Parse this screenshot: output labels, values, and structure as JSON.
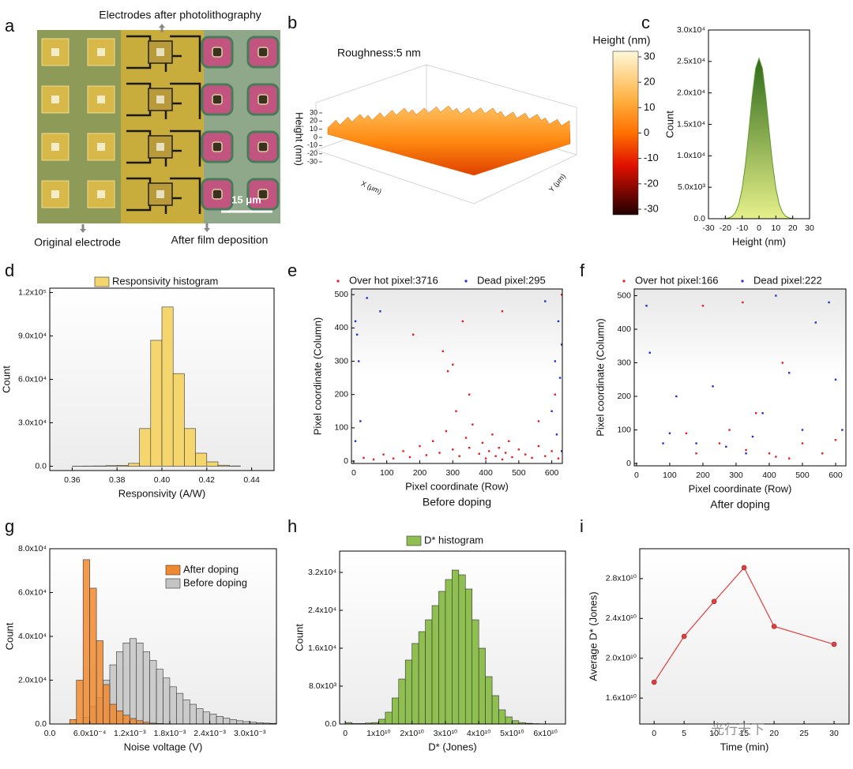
{
  "watermark": "光行天下",
  "chart_data": [
    {
      "panel": "a",
      "type": "image",
      "annotations": [
        "Electrodes after photolithography",
        "Original electrode",
        "After film deposition"
      ],
      "scale_bar": "15 μm"
    },
    {
      "panel": "b",
      "type": "surface",
      "title": "Roughness:5 nm",
      "zlabel": "Height (nm)",
      "xlabel": "X (μm)",
      "ylabel": "Y (μm)",
      "zlim": [
        -30,
        30
      ],
      "zticks": [
        30,
        20,
        10,
        0,
        -10,
        -20,
        -30
      ],
      "colorbar_label": "Height (nm)",
      "colorbar_lim": [
        -30,
        30
      ],
      "colorbar_ticks": [
        30,
        20,
        10,
        0,
        -10,
        -20,
        -30
      ]
    },
    {
      "panel": "c",
      "type": "area",
      "xlabel": "Height (nm)",
      "ylabel": "Count",
      "color": "#5e9a2e",
      "x": [
        -20,
        -18,
        -16,
        -14,
        -12,
        -10,
        -8,
        -6,
        -4,
        -2,
        0,
        2,
        4,
        6,
        8,
        10,
        12,
        14,
        16,
        18,
        20
      ],
      "values": [
        33,
        115,
        360,
        970,
        2300,
        4800,
        8800,
        14000,
        19500,
        23900,
        25500,
        23900,
        19500,
        14000,
        8800,
        4800,
        2300,
        970,
        360,
        115,
        33
      ],
      "xlim": [
        -30,
        30
      ],
      "xticks": [
        -30,
        -20,
        -10,
        0,
        10,
        20,
        30
      ],
      "ylim": [
        0,
        30000
      ],
      "yticks": [
        {
          "value": 0,
          "label": "0.0"
        },
        {
          "value": 5000,
          "label": "5.0x10³"
        },
        {
          "value": 10000,
          "label": "1.0x10⁴"
        },
        {
          "value": 15000,
          "label": "1.5x10⁴"
        },
        {
          "value": 20000,
          "label": "2.0x10⁴"
        },
        {
          "value": 25000,
          "label": "2.5x10⁴"
        },
        {
          "value": 30000,
          "label": "3.0x10⁴"
        }
      ]
    },
    {
      "panel": "d",
      "type": "histogram",
      "xlabel": "Responsivity (A/W)",
      "ylabel": "Count",
      "bins": [
        0.36,
        0.365,
        0.37,
        0.375,
        0.38,
        0.385,
        0.39,
        0.395,
        0.4,
        0.405,
        0.41,
        0.415,
        0.42,
        0.425,
        0.43,
        0.435
      ],
      "series": [
        {
          "name": "Responsivity histogram",
          "color": "#f5d66e",
          "values": [
            100,
            150,
            200,
            400,
            600,
            2000,
            26000,
            87000,
            110000,
            64000,
            26000,
            9000,
            3000,
            700,
            200
          ]
        }
      ],
      "xlim": [
        0.35,
        0.45
      ],
      "xticks": [
        0.36,
        0.38,
        {
          "value": 0.4,
          "label": "0.40"
        },
        0.42,
        0.44
      ],
      "ylim": [
        -3000,
        123000
      ],
      "yticks": [
        {
          "value": 0,
          "label": "0.0"
        },
        {
          "value": 30000,
          "label": "3.0x10⁴"
        },
        {
          "value": 60000,
          "label": "6.0x10⁴"
        },
        {
          "value": 90000,
          "label": "9.0x10⁴"
        },
        {
          "value": 120000,
          "label": "1.2x10⁵"
        }
      ]
    },
    {
      "panel": "e",
      "type": "scatter",
      "xlabel": "Pixel coordinate (Row)",
      "ylabel": "Pixel coordinate (Column)",
      "subtitle": "Before doping",
      "series": [
        {
          "name": "Over hot pixel:3716",
          "color": "#e02020",
          "x": [
            30,
            60,
            90,
            120,
            150,
            170,
            200,
            220,
            240,
            260,
            280,
            300,
            310,
            320,
            340,
            350,
            360,
            380,
            390,
            400,
            410,
            420,
            430,
            440,
            450,
            460,
            470,
            480,
            500,
            520,
            540,
            560,
            580,
            600,
            620,
            285,
            300,
            330,
            180,
            450,
            630,
            610,
            560,
            350,
            270
          ],
          "values": [
            10,
            5,
            20,
            8,
            30,
            12,
            45,
            18,
            60,
            25,
            90,
            35,
            150,
            15,
            70,
            40,
            110,
            22,
            55,
            8,
            30,
            80,
            15,
            40,
            5,
            25,
            60,
            12,
            35,
            20,
            10,
            45,
            15,
            30,
            8,
            270,
            290,
            420,
            380,
            450,
            500,
            200,
            120,
            200,
            330
          ]
        },
        {
          "name": "Dead pixel:295",
          "color": "#2030d0",
          "x": [
            5,
            10,
            15,
            20,
            5,
            40,
            620,
            630,
            610,
            625,
            600,
            615,
            630,
            80,
            580
          ],
          "values": [
            420,
            380,
            300,
            120,
            60,
            490,
            420,
            350,
            300,
            250,
            150,
            80,
            30,
            450,
            480
          ]
        }
      ],
      "xlim": [
        -7,
        632
      ],
      "xticks": [
        0,
        100,
        200,
        300,
        400,
        500,
        600
      ],
      "ylim": [
        -7,
        517
      ],
      "yticks": [
        0,
        100,
        200,
        300,
        400,
        500
      ]
    },
    {
      "panel": "f",
      "type": "scatter",
      "xlabel": "Pixel coordinate (Row)",
      "ylabel": "Pixel coordinate (Column)",
      "subtitle": "After doping",
      "series": [
        {
          "name": "Over hot pixel:166",
          "color": "#e02020",
          "x": [
            150,
            200,
            250,
            320,
            330,
            400,
            420,
            460,
            500,
            560,
            440,
            360,
            600,
            180,
            280
          ],
          "values": [
            90,
            470,
            60,
            480,
            40,
            30,
            20,
            15,
            60,
            30,
            300,
            150,
            70,
            30,
            100
          ]
        },
        {
          "name": "Dead pixel:222",
          "color": "#2030d0",
          "x": [
            30,
            40,
            80,
            100,
            180,
            230,
            270,
            350,
            380,
            420,
            500,
            540,
            600,
            620,
            330,
            460,
            120,
            580
          ],
          "values": [
            470,
            330,
            60,
            90,
            60,
            230,
            50,
            80,
            150,
            500,
            100,
            420,
            250,
            100,
            30,
            270,
            200,
            480
          ]
        }
      ],
      "xlim": [
        -7,
        631
      ],
      "xticks": [
        0,
        100,
        200,
        300,
        400,
        500,
        600
      ],
      "ylim": [
        -7,
        520
      ],
      "yticks": [
        0,
        100,
        200,
        300,
        400,
        500
      ]
    },
    {
      "panel": "g",
      "type": "histogram",
      "xlabel": "Noise voltage (V)",
      "ylabel": "Count",
      "bins": [
        0.0003,
        0.0004,
        0.0005,
        0.0006,
        0.0007,
        0.0008,
        0.0009,
        0.001,
        0.0011,
        0.0012,
        0.0013,
        0.0014,
        0.0015,
        0.0016,
        0.0017,
        0.0018,
        0.0019,
        0.002,
        0.0021,
        0.0022,
        0.0023,
        0.0024,
        0.0025,
        0.0026,
        0.0027,
        0.0028,
        0.0029,
        0.003,
        0.0031,
        0.0032,
        0.0033,
        0.0034
      ],
      "series": [
        {
          "name": "After doping",
          "color": "#f08a30",
          "values": [
            2000,
            20000,
            75000,
            62000,
            38000,
            18000,
            9000,
            6000,
            4000,
            2500,
            1500,
            800,
            400,
            200,
            100,
            0,
            0,
            0,
            0,
            0,
            0,
            0,
            0,
            0,
            0,
            0,
            0,
            0,
            0,
            0,
            0
          ]
        },
        {
          "name": "Before doping",
          "color": "#c4c4c4",
          "values": [
            0,
            0,
            3000,
            8000,
            12000,
            20000,
            27000,
            33000,
            37000,
            39000,
            37000,
            33000,
            29000,
            25000,
            21000,
            17000,
            14000,
            11000,
            9000,
            7000,
            5500,
            4500,
            3500,
            2700,
            2000,
            1500,
            1100,
            800,
            600,
            400,
            300
          ]
        }
      ],
      "xlim": [
        0,
        0.0034
      ],
      "xticks": [
        {
          "value": 0,
          "label": "0.0"
        },
        {
          "value": 0.0006,
          "label": "6.0x10⁻⁴"
        },
        {
          "value": 0.0012,
          "label": "1.2x10⁻³"
        },
        {
          "value": 0.0018,
          "label": "1.8x10⁻³"
        },
        {
          "value": 0.0024,
          "label": "2.4x10⁻³"
        },
        {
          "value": 0.003,
          "label": "3.0x10⁻³"
        }
      ],
      "ylim": [
        0,
        80000
      ],
      "yticks": [
        {
          "value": 0,
          "label": "0.0"
        },
        {
          "value": 20000,
          "label": "2.0x10⁴"
        },
        {
          "value": 40000,
          "label": "4.0x10⁴"
        },
        {
          "value": 60000,
          "label": "6.0x10⁴"
        },
        {
          "value": 80000,
          "label": "8.0x10⁴"
        }
      ]
    },
    {
      "panel": "h",
      "type": "histogram",
      "xlabel": "D* (Jones)",
      "ylabel": "Count",
      "bins": [
        0,
        2000000000.0,
        4000000000.0,
        6000000000.0,
        8000000000.0,
        10000000000.0,
        12000000000.0,
        14000000000.0,
        16000000000.0,
        18000000000.0,
        20000000000.0,
        22000000000.0,
        24000000000.0,
        26000000000.0,
        28000000000.0,
        30000000000.0,
        32000000000.0,
        34000000000.0,
        36000000000.0,
        38000000000.0,
        40000000000.0,
        42000000000.0,
        44000000000.0,
        46000000000.0,
        48000000000.0,
        50000000000.0,
        52000000000.0,
        54000000000.0,
        56000000000.0,
        58000000000.0,
        60000000000.0
      ],
      "series": [
        {
          "name": "D* histogram",
          "color": "#8fbf50",
          "values": [
            300,
            100,
            100,
            200,
            300,
            1000,
            2500,
            5500,
            9500,
            13500,
            17000,
            19500,
            22000,
            25000,
            28000,
            30500,
            32500,
            31500,
            28500,
            22000,
            16000,
            10000,
            6000,
            3000,
            1500,
            700,
            300,
            150,
            80,
            50
          ]
        }
      ],
      "xlim": [
        -1700000000.0,
        66000000000.0
      ],
      "xticks": [
        0,
        {
          "value": 10000000000.0,
          "label": "1x10¹⁰"
        },
        {
          "value": 20000000000.0,
          "label": "2x10¹⁰"
        },
        {
          "value": 30000000000.0,
          "label": "3x10¹⁰"
        },
        {
          "value": 40000000000.0,
          "label": "4x10¹⁰"
        },
        {
          "value": 50000000000.0,
          "label": "5x10¹⁰"
        },
        {
          "value": 60000000000.0,
          "label": "6x10¹⁰"
        }
      ],
      "ylim": [
        0,
        36500
      ],
      "yticks": [
        {
          "value": 0,
          "label": "0.0"
        },
        {
          "value": 8000,
          "label": "8.0x10³"
        },
        {
          "value": 16000,
          "label": "1.6x10⁴"
        },
        {
          "value": 24000,
          "label": "2.4x10⁴"
        },
        {
          "value": 32000,
          "label": "3.2x10⁴"
        }
      ]
    },
    {
      "panel": "i",
      "type": "line",
      "xlabel": "Time (min)",
      "ylabel": "Average D* (Jones)",
      "color": "#e04040",
      "x": [
        0,
        5,
        10,
        15,
        20,
        30
      ],
      "values": [
        17600000000.0,
        22200000000.0,
        25700000000.0,
        29100000000.0,
        23200000000.0,
        21400000000.0
      ],
      "xlim": [
        -2.4,
        32.5
      ],
      "xticks": [
        0,
        5,
        10,
        15,
        20,
        25,
        30
      ],
      "ylim": [
        13400000000.0,
        31000000000.0
      ],
      "yticks": [
        {
          "value": 16000000000.0,
          "label": "1.6x10¹⁰"
        },
        {
          "value": 20000000000.0,
          "label": "2.0x10¹⁰"
        },
        {
          "value": 24000000000.0,
          "label": "2.4x10¹⁰"
        },
        {
          "value": 28000000000.0,
          "label": "2.8x10¹⁰"
        }
      ]
    }
  ]
}
